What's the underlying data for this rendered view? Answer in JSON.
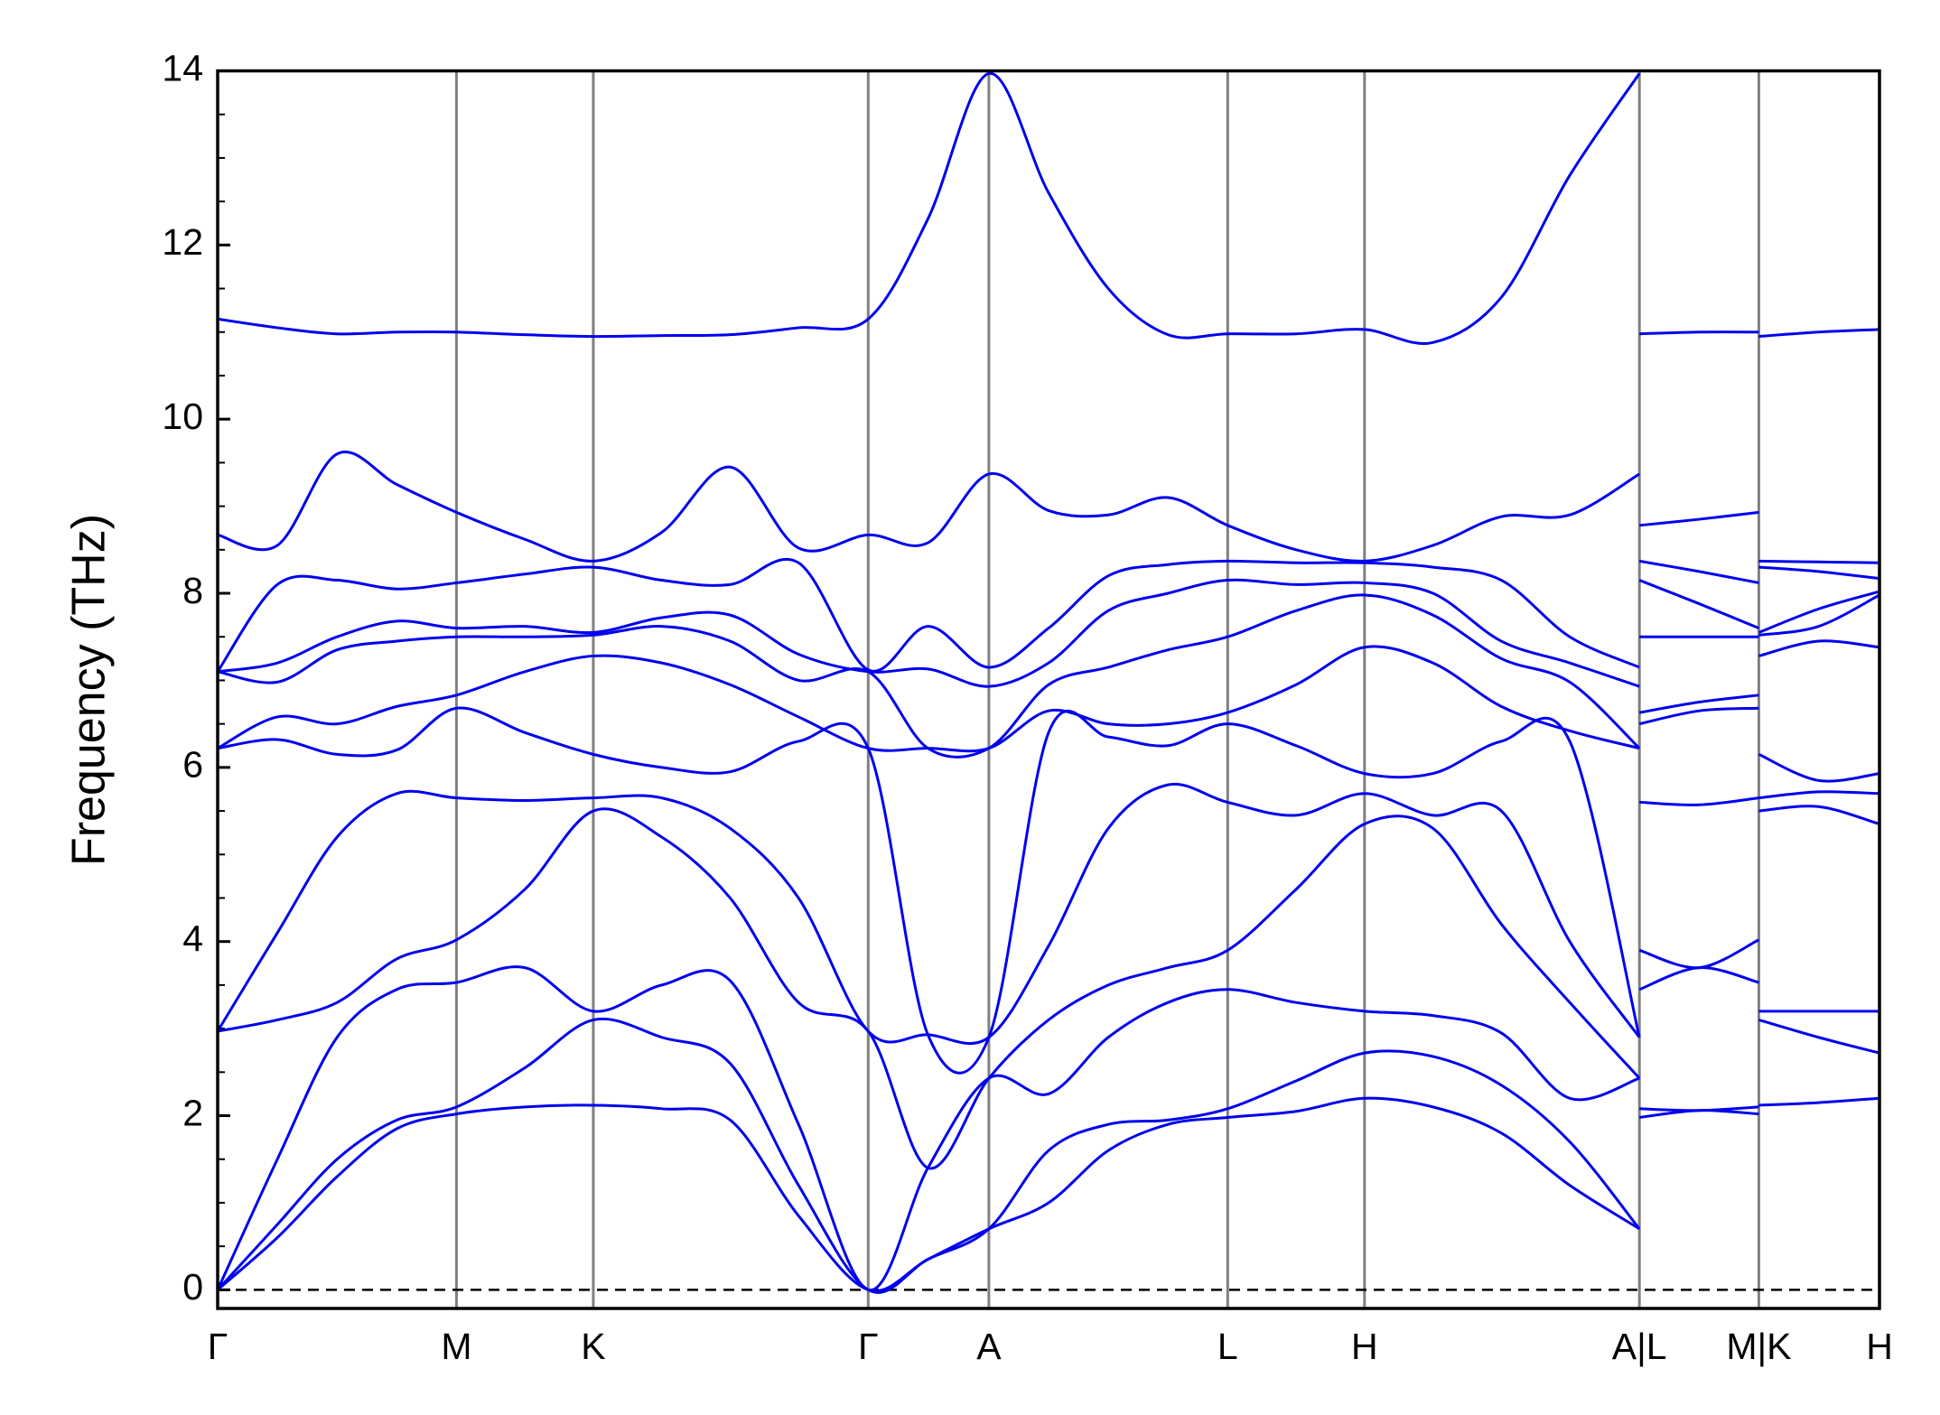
{
  "chart_data": {
    "type": "line",
    "ylabel": "Frequency (THz)",
    "color": "#0000ee",
    "xlim": [
      0,
      1.336
    ],
    "xticks": [
      {
        "value": 0,
        "label": "Γ"
      },
      {
        "value": 0.192,
        "label": "M"
      },
      {
        "value": 0.302,
        "label": "K"
      },
      {
        "value": 0.523,
        "label": "Γ"
      },
      {
        "value": 0.62,
        "label": "A"
      },
      {
        "value": 0.812,
        "label": "L"
      },
      {
        "value": 0.922,
        "label": "H"
      },
      {
        "value": 1.143,
        "label": "A|L"
      },
      {
        "value": 1.239,
        "label": "M|K"
      },
      {
        "value": 1.336,
        "label": "H"
      }
    ],
    "xgrid": true,
    "ylim": [
      -0.214,
      14
    ],
    "yticks": [
      0,
      2,
      4,
      6,
      8,
      10,
      12,
      14
    ],
    "yminorticks": [
      0.5,
      1,
      1.5,
      2.5,
      3,
      3.5,
      4.5,
      5,
      5.5,
      6.5,
      7,
      7.5,
      8.5,
      9,
      9.5,
      10.5,
      11,
      11.5,
      12.5,
      13,
      13.5
    ],
    "zero_line": true,
    "x": [
      0,
      0.048,
      0.096,
      0.144,
      0.192,
      0.247,
      0.302,
      0.357,
      0.412,
      0.467,
      0.523,
      0.571,
      0.62,
      0.668,
      0.716,
      0.764,
      0.812,
      0.867,
      0.922,
      0.977,
      1.032,
      1.087,
      1.143,
      1.143,
      1.143,
      1.191,
      1.239,
      1.239,
      1.239,
      1.287,
      1.336
    ],
    "series": [
      {
        "values": [
          0,
          0.6,
          1.3,
          1.85,
          2.02,
          2.1,
          2.12,
          2.08,
          1.95,
          0.85,
          0,
          0.35,
          0.7,
          1.0,
          1.6,
          1.9,
          1.98,
          2.05,
          2.2,
          2.1,
          1.8,
          1.2,
          0.7,
          null,
          1.98,
          2.06,
          2.02,
          null,
          2.12,
          2.15,
          2.2
        ]
      },
      {
        "values": [
          0,
          0.75,
          1.5,
          1.95,
          2.1,
          2.55,
          3.1,
          2.9,
          2.6,
          1.2,
          0,
          0.35,
          0.7,
          1.6,
          1.9,
          1.95,
          2.08,
          2.4,
          2.72,
          2.68,
          2.35,
          1.7,
          0.7,
          null,
          2.08,
          2.06,
          2.1,
          null,
          3.1,
          2.9,
          2.72
        ]
      },
      {
        "values": [
          0,
          1.5,
          2.9,
          3.45,
          3.53,
          3.7,
          3.2,
          3.5,
          3.55,
          1.9,
          0,
          1.4,
          2.43,
          2.25,
          2.9,
          3.3,
          3.45,
          3.3,
          3.2,
          3.15,
          2.95,
          2.2,
          2.43,
          null,
          3.45,
          3.7,
          3.53,
          null,
          3.2,
          3.2,
          3.2
        ]
      },
      {
        "values": [
          2.97,
          3.1,
          3.3,
          3.8,
          4.02,
          4.6,
          5.5,
          5.2,
          4.5,
          3.3,
          2.97,
          1.4,
          2.43,
          3.1,
          3.5,
          3.7,
          3.9,
          4.6,
          5.35,
          5.3,
          4.2,
          3.3,
          2.43,
          null,
          3.9,
          3.7,
          4.02,
          null,
          5.5,
          5.55,
          5.35
        ]
      },
      {
        "values": [
          2.97,
          4.1,
          5.2,
          5.7,
          5.65,
          5.62,
          5.65,
          5.65,
          5.3,
          4.5,
          2.97,
          2.93,
          2.9,
          3.95,
          5.3,
          5.8,
          5.6,
          5.45,
          5.7,
          5.45,
          5.5,
          4.0,
          2.9,
          null,
          5.6,
          5.57,
          5.65,
          null,
          5.65,
          5.72,
          5.7
        ]
      },
      {
        "values": [
          6.22,
          6.32,
          6.15,
          6.2,
          6.68,
          6.4,
          6.15,
          6.0,
          5.95,
          6.3,
          6.22,
          2.93,
          2.9,
          6.4,
          6.35,
          6.25,
          6.5,
          6.25,
          5.93,
          5.93,
          6.3,
          6.3,
          2.9,
          null,
          6.5,
          6.65,
          6.68,
          null,
          6.15,
          5.85,
          5.93
        ]
      },
      {
        "values": [
          6.22,
          6.58,
          6.5,
          6.7,
          6.83,
          7.1,
          7.28,
          7.2,
          6.95,
          6.58,
          6.22,
          6.22,
          6.22,
          6.65,
          6.5,
          6.5,
          6.63,
          6.95,
          7.38,
          7.2,
          6.7,
          6.42,
          6.22,
          null,
          6.63,
          6.75,
          6.83,
          null,
          7.28,
          7.45,
          7.38
        ]
      },
      {
        "values": [
          7.1,
          6.98,
          7.35,
          7.45,
          7.5,
          7.5,
          7.52,
          7.62,
          7.45,
          7.0,
          7.1,
          6.22,
          6.22,
          6.95,
          7.15,
          7.35,
          7.5,
          7.8,
          7.98,
          7.75,
          7.25,
          6.98,
          6.22,
          null,
          7.5,
          7.5,
          7.5,
          null,
          7.52,
          7.62,
          7.98
        ]
      },
      {
        "values": [
          7.1,
          7.2,
          7.5,
          7.68,
          7.6,
          7.62,
          7.55,
          7.72,
          7.75,
          7.3,
          7.1,
          7.13,
          6.93,
          7.2,
          7.8,
          8.0,
          8.15,
          8.1,
          8.12,
          8.0,
          7.45,
          7.2,
          6.93,
          null,
          8.15,
          7.88,
          7.6,
          null,
          7.55,
          7.82,
          8.02
        ]
      },
      {
        "values": [
          7.1,
          8.1,
          8.15,
          8.05,
          8.12,
          8.22,
          8.3,
          8.15,
          8.1,
          8.35,
          7.12,
          7.62,
          7.15,
          7.6,
          8.2,
          8.33,
          8.37,
          8.35,
          8.35,
          8.3,
          8.15,
          7.5,
          7.15,
          null,
          8.37,
          8.25,
          8.12,
          null,
          8.3,
          8.25,
          8.17
        ]
      },
      {
        "values": [
          8.67,
          8.55,
          9.6,
          9.25,
          8.93,
          8.62,
          8.37,
          8.7,
          9.45,
          8.52,
          8.67,
          8.58,
          9.37,
          8.95,
          8.9,
          9.1,
          8.78,
          8.5,
          8.37,
          8.55,
          8.88,
          8.9,
          9.37,
          null,
          8.78,
          8.85,
          8.93,
          null,
          8.37,
          8.36,
          8.35
        ]
      },
      {
        "values": [
          11.15,
          11.05,
          10.98,
          11.0,
          11.0,
          10.97,
          10.95,
          10.96,
          10.97,
          11.05,
          11.15,
          12.3,
          13.97,
          12.6,
          11.5,
          10.97,
          10.98,
          10.98,
          11.03,
          10.88,
          11.4,
          12.8,
          13.97,
          null,
          10.98,
          11.0,
          11.0,
          null,
          10.95,
          11.0,
          11.03
        ]
      }
    ]
  }
}
